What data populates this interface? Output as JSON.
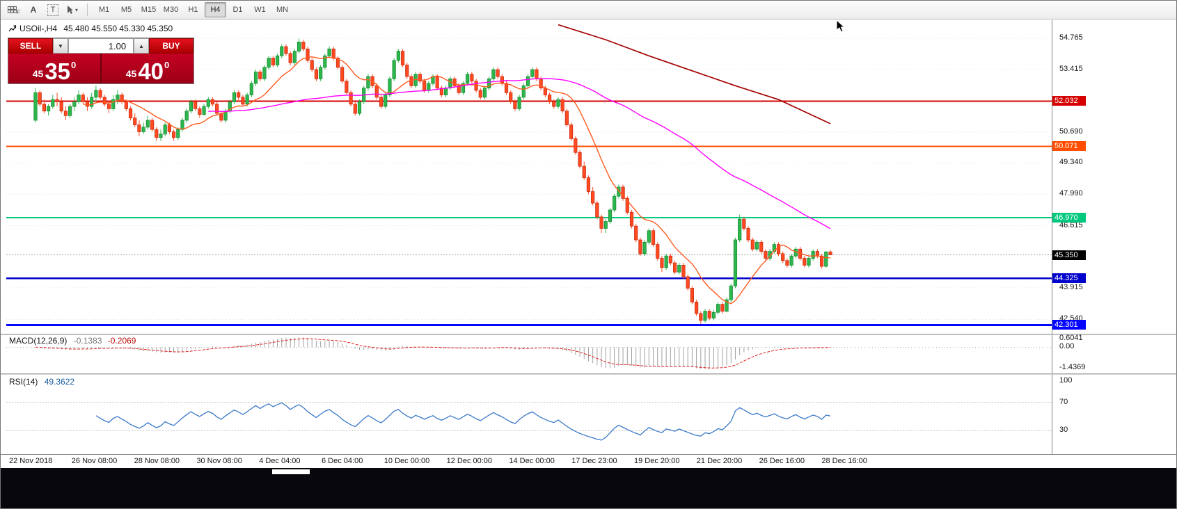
{
  "toolbar": {
    "tools": [
      {
        "name": "panel-grid",
        "label": "F"
      },
      {
        "name": "text-annotation",
        "label": "A"
      },
      {
        "name": "text-box",
        "label": "T"
      },
      {
        "name": "cursor-tool",
        "label": "▾"
      }
    ],
    "timeframes": {
      "items": [
        "M1",
        "M5",
        "M15",
        "M30",
        "H1",
        "H4",
        "D1",
        "W1",
        "MN"
      ],
      "active": "H4"
    }
  },
  "trade": {
    "sell_label": "SELL",
    "buy_label": "BUY",
    "volume": "1.00",
    "vol_down": "▼",
    "vol_up": "▲",
    "bid": {
      "prefix": "45",
      "big": "35",
      "sup": "0"
    },
    "ask": {
      "prefix": "45",
      "big": "40",
      "sup": "0"
    }
  },
  "chart_data": {
    "type": "candlestick",
    "symbol": "USOil-",
    "timeframe": "H4",
    "title": "USOil-,H4",
    "ohlc_text": "45.480 45.550 45.330 45.350",
    "current_bar": {
      "open": 45.48,
      "high": 45.55,
      "low": 45.33,
      "close": 45.35
    },
    "y_range": [
      41.95,
      55.55
    ],
    "up_color": "#2db84d",
    "up_border": "#1a8c35",
    "down_color": "#ff4a22",
    "down_border": "#cc2f12",
    "price_ticks": [
      "54.765",
      "53.415",
      "50.690",
      "49.340",
      "47.990",
      "46.615",
      "43.915",
      "42.540"
    ],
    "hlines": [
      {
        "value": 52.032,
        "label": "52.032",
        "color": "#d60000",
        "width": 2
      },
      {
        "value": 50.071,
        "label": "50.071",
        "color": "#ff4e00",
        "width": 2
      },
      {
        "value": 46.97,
        "label": "46.970",
        "color": "#00c87d",
        "width": 2
      },
      {
        "value": 44.325,
        "label": "44.325",
        "color": "#0000cd",
        "width": 2.5
      },
      {
        "value": 42.301,
        "label": "42.301",
        "color": "#0505ff",
        "width": 3
      }
    ],
    "current_price": {
      "value": 45.35,
      "label": "45.350",
      "bg": "#000000"
    },
    "ma": [
      {
        "name": "fast",
        "period": 12,
        "color": "#ff5a1e"
      },
      {
        "name": "mid",
        "period": 70,
        "color": "#ff00ff"
      }
    ],
    "ma_long": {
      "color": "#a40000",
      "points": [
        [
          121,
          55.35
        ],
        [
          132,
          54.7
        ],
        [
          142,
          54.0
        ],
        [
          152,
          53.35
        ],
        [
          162,
          52.7
        ],
        [
          172,
          52.1
        ],
        [
          184,
          51.05
        ]
      ]
    },
    "time_labels": [
      "22 Nov 2018",
      "26 Nov 08:00",
      "28 Nov 08:00",
      "30 Nov 08:00",
      "4 Dec 04:00",
      "6 Dec 04:00",
      "10 Dec 00:00",
      "12 Dec 00:00",
      "14 Dec 00:00",
      "17 Dec 23:00",
      "19 Dec 20:00",
      "21 Dec 20:00",
      "26 Dec 16:00",
      "28 Dec 16:00"
    ],
    "candles": [
      [
        51.2,
        52.6,
        51.1,
        52.4
      ],
      [
        52.4,
        52.5,
        51.8,
        51.9
      ],
      [
        51.9,
        52.1,
        51.5,
        51.6
      ],
      [
        51.6,
        51.9,
        51.4,
        51.8
      ],
      [
        51.8,
        52.3,
        51.7,
        52.1
      ],
      [
        52.1,
        52.4,
        51.8,
        52.0
      ],
      [
        52.0,
        52.2,
        51.5,
        51.6
      ],
      [
        51.6,
        51.8,
        51.2,
        51.4
      ],
      [
        51.4,
        51.9,
        51.3,
        51.8
      ],
      [
        51.8,
        52.2,
        51.6,
        52.0
      ],
      [
        52.0,
        52.5,
        51.9,
        52.3
      ],
      [
        52.3,
        52.4,
        51.9,
        52.0
      ],
      [
        52.0,
        52.2,
        51.6,
        51.8
      ],
      [
        51.8,
        52.4,
        51.7,
        52.2
      ],
      [
        52.2,
        52.7,
        52.0,
        52.5
      ],
      [
        52.5,
        52.6,
        52.1,
        52.2
      ],
      [
        52.2,
        52.3,
        51.8,
        51.9
      ],
      [
        51.9,
        52.0,
        51.5,
        51.7
      ],
      [
        51.7,
        52.3,
        51.6,
        52.1
      ],
      [
        52.1,
        52.5,
        51.9,
        52.3
      ],
      [
        52.3,
        52.4,
        51.9,
        52.0
      ],
      [
        52.0,
        52.1,
        51.6,
        51.7
      ],
      [
        51.7,
        51.8,
        51.2,
        51.3
      ],
      [
        51.3,
        51.5,
        50.9,
        51.0
      ],
      [
        51.0,
        51.2,
        50.5,
        50.7
      ],
      [
        50.7,
        51.1,
        50.6,
        50.9
      ],
      [
        50.9,
        51.4,
        50.8,
        51.2
      ],
      [
        51.2,
        51.3,
        50.7,
        50.8
      ],
      [
        50.8,
        50.9,
        50.3,
        50.45
      ],
      [
        50.45,
        50.8,
        50.3,
        50.6
      ],
      [
        50.6,
        51.1,
        50.5,
        51.0
      ],
      [
        51.0,
        51.1,
        50.6,
        50.7
      ],
      [
        50.7,
        50.8,
        50.3,
        50.45
      ],
      [
        50.45,
        50.9,
        50.35,
        50.8
      ],
      [
        50.8,
        51.3,
        50.7,
        51.2
      ],
      [
        51.2,
        51.7,
        51.1,
        51.6
      ],
      [
        51.6,
        52.1,
        51.5,
        52.0
      ],
      [
        52.0,
        52.1,
        51.6,
        51.7
      ],
      [
        51.7,
        51.8,
        51.3,
        51.45
      ],
      [
        51.45,
        51.9,
        51.4,
        51.8
      ],
      [
        51.8,
        52.2,
        51.7,
        52.1
      ],
      [
        52.1,
        52.2,
        51.8,
        51.9
      ],
      [
        51.9,
        52.0,
        51.4,
        51.5
      ],
      [
        51.5,
        51.6,
        51.1,
        51.2
      ],
      [
        51.2,
        51.7,
        51.1,
        51.6
      ],
      [
        51.6,
        52.1,
        51.5,
        52.0
      ],
      [
        52.0,
        52.5,
        51.9,
        52.4
      ],
      [
        52.4,
        52.5,
        52.0,
        52.2
      ],
      [
        52.2,
        52.3,
        51.8,
        51.9
      ],
      [
        51.9,
        52.4,
        51.8,
        52.3
      ],
      [
        52.3,
        52.9,
        52.2,
        52.8
      ],
      [
        52.8,
        53.4,
        52.7,
        53.3
      ],
      [
        53.3,
        53.4,
        52.9,
        53.0
      ],
      [
        53.0,
        53.6,
        52.9,
        53.5
      ],
      [
        53.5,
        54.0,
        53.4,
        53.9
      ],
      [
        53.9,
        54.0,
        53.5,
        53.6
      ],
      [
        53.6,
        54.1,
        53.5,
        54.0
      ],
      [
        54.0,
        54.5,
        53.9,
        54.4
      ],
      [
        54.4,
        54.5,
        54.0,
        54.1
      ],
      [
        54.1,
        54.2,
        53.6,
        53.7
      ],
      [
        53.7,
        54.3,
        53.6,
        54.2
      ],
      [
        54.2,
        54.75,
        54.1,
        54.6
      ],
      [
        54.6,
        54.7,
        54.2,
        54.3
      ],
      [
        54.3,
        54.4,
        53.7,
        53.8
      ],
      [
        53.8,
        53.9,
        53.3,
        53.4
      ],
      [
        53.4,
        53.5,
        52.9,
        53.0
      ],
      [
        53.0,
        53.6,
        52.9,
        53.5
      ],
      [
        53.5,
        54.1,
        53.4,
        54.0
      ],
      [
        54.0,
        54.4,
        53.9,
        54.3
      ],
      [
        54.3,
        54.4,
        53.8,
        53.9
      ],
      [
        53.9,
        54.0,
        53.4,
        53.5
      ],
      [
        53.5,
        53.6,
        52.8,
        52.9
      ],
      [
        52.9,
        53.0,
        52.3,
        52.4
      ],
      [
        52.4,
        52.5,
        51.8,
        51.9
      ],
      [
        51.9,
        52.0,
        51.4,
        51.5
      ],
      [
        51.5,
        52.1,
        51.4,
        52.0
      ],
      [
        52.0,
        52.7,
        51.9,
        52.6
      ],
      [
        52.6,
        53.2,
        52.5,
        53.1
      ],
      [
        53.1,
        53.2,
        52.6,
        52.7
      ],
      [
        52.7,
        52.8,
        52.1,
        52.2
      ],
      [
        52.2,
        52.3,
        51.7,
        51.8
      ],
      [
        51.8,
        52.4,
        51.7,
        52.3
      ],
      [
        52.3,
        53.1,
        52.2,
        53.0
      ],
      [
        53.0,
        53.9,
        52.9,
        53.8
      ],
      [
        53.8,
        54.3,
        53.7,
        54.2
      ],
      [
        54.2,
        54.3,
        53.5,
        53.6
      ],
      [
        53.6,
        53.7,
        53.0,
        53.1
      ],
      [
        53.1,
        53.2,
        52.6,
        52.7
      ],
      [
        52.7,
        53.3,
        52.6,
        53.2
      ],
      [
        53.2,
        53.3,
        52.8,
        52.9
      ],
      [
        52.9,
        53.0,
        52.4,
        52.5
      ],
      [
        52.5,
        52.9,
        52.4,
        52.8
      ],
      [
        52.8,
        53.2,
        52.7,
        53.1
      ],
      [
        53.1,
        53.2,
        52.5,
        52.6
      ],
      [
        52.6,
        52.7,
        52.2,
        52.3
      ],
      [
        52.3,
        52.7,
        52.2,
        52.6
      ],
      [
        52.6,
        53.1,
        52.5,
        53.0
      ],
      [
        53.0,
        53.1,
        52.6,
        52.7
      ],
      [
        52.7,
        52.8,
        52.3,
        52.4
      ],
      [
        52.4,
        52.9,
        52.3,
        52.8
      ],
      [
        52.8,
        53.3,
        52.7,
        53.2
      ],
      [
        53.2,
        53.3,
        52.8,
        52.9
      ],
      [
        52.9,
        53.0,
        52.4,
        52.5
      ],
      [
        52.5,
        52.6,
        52.1,
        52.2
      ],
      [
        52.2,
        52.7,
        52.1,
        52.6
      ],
      [
        52.6,
        53.1,
        52.5,
        53.0
      ],
      [
        53.0,
        53.5,
        52.9,
        53.4
      ],
      [
        53.4,
        53.5,
        53.0,
        53.1
      ],
      [
        53.1,
        53.2,
        52.7,
        52.8
      ],
      [
        52.8,
        52.9,
        52.3,
        52.4
      ],
      [
        52.4,
        52.5,
        51.9,
        52.0
      ],
      [
        52.0,
        52.1,
        51.6,
        51.7
      ],
      [
        51.7,
        52.3,
        51.6,
        52.2
      ],
      [
        52.2,
        52.8,
        52.1,
        52.7
      ],
      [
        52.7,
        53.2,
        52.6,
        53.1
      ],
      [
        53.1,
        53.5,
        53.0,
        53.4
      ],
      [
        53.4,
        53.5,
        52.9,
        53.0
      ],
      [
        53.0,
        53.1,
        52.5,
        52.6
      ],
      [
        52.6,
        52.7,
        52.2,
        52.3
      ],
      [
        52.3,
        52.4,
        51.9,
        52.0
      ],
      [
        52.0,
        52.1,
        51.7,
        51.8
      ],
      [
        51.8,
        52.2,
        51.7,
        52.1
      ],
      [
        52.1,
        52.2,
        51.5,
        51.6
      ],
      [
        51.6,
        51.7,
        50.9,
        51.0
      ],
      [
        51.0,
        51.1,
        50.3,
        50.4
      ],
      [
        50.4,
        50.5,
        49.7,
        49.8
      ],
      [
        49.8,
        49.9,
        49.1,
        49.2
      ],
      [
        49.2,
        49.4,
        48.6,
        48.7
      ],
      [
        48.7,
        48.8,
        48.0,
        48.1
      ],
      [
        48.1,
        48.3,
        47.5,
        47.6
      ],
      [
        47.6,
        47.7,
        46.9,
        47.0
      ],
      [
        47.0,
        47.1,
        46.3,
        46.5
      ],
      [
        46.5,
        46.9,
        46.3,
        46.8
      ],
      [
        46.8,
        47.4,
        46.7,
        47.3
      ],
      [
        47.3,
        48.0,
        47.2,
        47.9
      ],
      [
        47.9,
        48.4,
        47.8,
        48.3
      ],
      [
        48.3,
        48.4,
        47.7,
        47.8
      ],
      [
        47.8,
        47.9,
        47.1,
        47.2
      ],
      [
        47.2,
        47.3,
        46.5,
        46.6
      ],
      [
        46.6,
        46.7,
        45.9,
        46.0
      ],
      [
        46.0,
        46.1,
        45.3,
        45.4
      ],
      [
        45.4,
        46.0,
        45.3,
        45.9
      ],
      [
        45.9,
        46.5,
        45.8,
        46.4
      ],
      [
        46.4,
        46.5,
        45.7,
        45.8
      ],
      [
        45.8,
        45.9,
        45.1,
        45.2
      ],
      [
        45.2,
        45.3,
        44.6,
        44.8
      ],
      [
        44.8,
        45.4,
        44.7,
        45.3
      ],
      [
        45.3,
        45.4,
        44.9,
        45.0
      ],
      [
        45.0,
        45.1,
        44.5,
        44.6
      ],
      [
        44.6,
        45.0,
        44.5,
        44.9
      ],
      [
        44.9,
        45.0,
        44.3,
        44.4
      ],
      [
        44.4,
        44.5,
        43.8,
        43.9
      ],
      [
        43.9,
        44.0,
        43.2,
        43.3
      ],
      [
        43.3,
        43.4,
        42.7,
        42.8
      ],
      [
        42.8,
        42.9,
        42.35,
        42.5
      ],
      [
        42.5,
        43.0,
        42.4,
        42.9
      ],
      [
        42.9,
        43.0,
        42.5,
        42.6
      ],
      [
        42.6,
        42.95,
        42.5,
        42.85
      ],
      [
        42.85,
        43.3,
        42.75,
        43.2
      ],
      [
        43.2,
        43.3,
        42.8,
        42.9
      ],
      [
        42.9,
        43.5,
        42.85,
        43.4
      ],
      [
        43.4,
        44.1,
        43.3,
        44.0
      ],
      [
        44.0,
        46.1,
        43.9,
        46.0
      ],
      [
        46.0,
        47.1,
        45.9,
        46.9
      ],
      [
        46.9,
        47.0,
        46.4,
        46.5
      ],
      [
        46.5,
        46.6,
        45.9,
        46.0
      ],
      [
        46.0,
        46.1,
        45.5,
        45.6
      ],
      [
        45.6,
        46.0,
        45.5,
        45.9
      ],
      [
        45.9,
        46.0,
        45.4,
        45.5
      ],
      [
        45.5,
        45.6,
        45.1,
        45.2
      ],
      [
        45.2,
        45.6,
        45.1,
        45.5
      ],
      [
        45.5,
        45.9,
        45.4,
        45.8
      ],
      [
        45.8,
        45.9,
        45.3,
        45.4
      ],
      [
        45.4,
        45.5,
        45.0,
        45.1
      ],
      [
        45.1,
        45.2,
        44.8,
        44.9
      ],
      [
        44.9,
        45.4,
        44.8,
        45.3
      ],
      [
        45.3,
        45.7,
        45.2,
        45.6
      ],
      [
        45.6,
        45.7,
        45.1,
        45.2
      ],
      [
        45.2,
        45.3,
        44.8,
        44.9
      ],
      [
        44.9,
        45.3,
        44.8,
        45.2
      ],
      [
        45.2,
        45.6,
        45.1,
        45.5
      ],
      [
        45.5,
        45.6,
        45.2,
        45.3
      ],
      [
        45.3,
        45.4,
        44.75,
        44.85
      ],
      [
        44.85,
        45.5,
        44.8,
        45.48
      ],
      [
        45.48,
        45.55,
        45.33,
        45.35
      ]
    ],
    "macd": {
      "label": "MACD(12,26,9)",
      "value_main": "-0.1383",
      "value_signal": "-0.2069",
      "fast": 12,
      "slow": 26,
      "signal": 9,
      "range": [
        -1.8,
        0.85
      ],
      "ticks": [
        "0.6041",
        "0.00",
        "-1.4369"
      ],
      "hist_color": "#a0a0a0",
      "signal_color": "#e02020"
    },
    "rsi": {
      "label": "RSI(14)",
      "value": "49.3622",
      "period": 14,
      "levels": [
        70,
        30
      ],
      "ticks": [
        "100",
        "70",
        "30"
      ],
      "color": "#3a78c8"
    }
  }
}
